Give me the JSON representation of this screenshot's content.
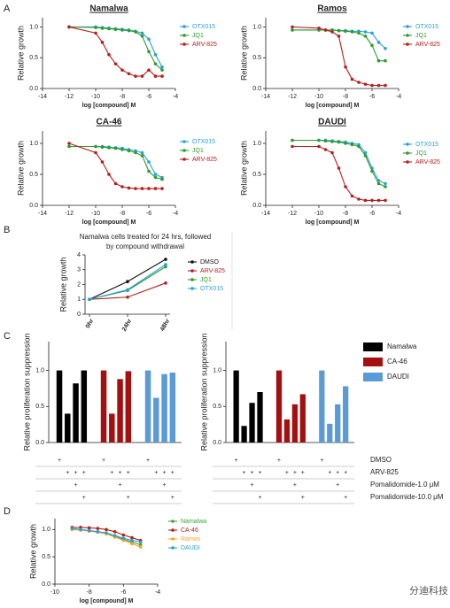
{
  "panel_labels": [
    "A",
    "B",
    "C",
    "D"
  ],
  "watermark": "分迪科技",
  "chart_data": [
    {
      "type": "line",
      "title": "Namalwa",
      "xlabel": "log [compound] M",
      "ylabel": "Relative growth",
      "x": [
        -12,
        -10,
        -9.5,
        -9,
        -8.5,
        -8,
        -7.5,
        -7,
        -6.5,
        -6,
        -5.5,
        -5
      ],
      "xlim": [
        -14,
        -4
      ],
      "xticks": [
        -14,
        -12,
        -10,
        -8,
        -6,
        -4
      ],
      "ylim": [
        0,
        1.15
      ],
      "yticks": [
        {
          "value": 0,
          "label": "0.0"
        },
        {
          "value": 0.5,
          "label": "0.5"
        },
        {
          "value": 1,
          "label": "1.0"
        }
      ],
      "series": [
        {
          "name": "OTX015",
          "color": "#2a9fd8",
          "values": [
            1.0,
            1.0,
            0.99,
            0.98,
            0.97,
            0.96,
            0.95,
            0.93,
            0.9,
            0.8,
            0.55,
            0.35
          ]
        },
        {
          "name": "JQ1",
          "color": "#2e9b2e",
          "values": [
            1.0,
            0.99,
            0.98,
            0.97,
            0.96,
            0.95,
            0.94,
            0.92,
            0.85,
            0.6,
            0.4,
            0.3
          ]
        },
        {
          "name": "ARV-825",
          "color": "#b3201e",
          "values": [
            1.0,
            0.9,
            0.75,
            0.55,
            0.4,
            0.3,
            0.24,
            0.2,
            0.2,
            0.3,
            0.2,
            0.2
          ]
        }
      ]
    },
    {
      "type": "line",
      "title": "Ramos",
      "xlabel": "log [compound] M",
      "ylabel": "Relative growth",
      "x": [
        -12,
        -10,
        -9.5,
        -9,
        -8.5,
        -8,
        -7.5,
        -7,
        -6.5,
        -6,
        -5.5,
        -5
      ],
      "xlim": [
        -14,
        -4
      ],
      "xticks": [
        -14,
        -12,
        -10,
        -8,
        -6,
        -4
      ],
      "ylim": [
        0,
        1.15
      ],
      "yticks": [
        {
          "value": 0,
          "label": "0.0"
        },
        {
          "value": 0.5,
          "label": "0.5"
        },
        {
          "value": 1,
          "label": "1.0"
        }
      ],
      "series": [
        {
          "name": "OTX015",
          "color": "#2a9fd8",
          "values": [
            0.95,
            0.95,
            0.95,
            0.95,
            0.94,
            0.94,
            0.93,
            0.93,
            0.92,
            0.9,
            0.75,
            0.65
          ]
        },
        {
          "name": "JQ1",
          "color": "#2e9b2e",
          "values": [
            0.95,
            0.95,
            0.95,
            0.95,
            0.94,
            0.93,
            0.92,
            0.9,
            0.85,
            0.7,
            0.45,
            0.45
          ]
        },
        {
          "name": "ARV-825",
          "color": "#b3201e",
          "values": [
            1.0,
            0.98,
            0.95,
            0.92,
            0.85,
            0.35,
            0.15,
            0.1,
            0.07,
            0.05,
            0.05,
            0.05
          ]
        }
      ]
    },
    {
      "type": "line",
      "title": "CA-46",
      "xlabel": "log [compound] M",
      "ylabel": "Relative growth",
      "x": [
        -12,
        -10,
        -9.5,
        -9,
        -8.5,
        -8,
        -7.5,
        -7,
        -6.5,
        -6,
        -5.5,
        -5
      ],
      "xlim": [
        -14,
        -4
      ],
      "xticks": [
        -14,
        -12,
        -10,
        -8,
        -6,
        -4
      ],
      "ylim": [
        0,
        1.2
      ],
      "yticks": [
        {
          "value": 0,
          "label": "0.0"
        },
        {
          "value": 0.5,
          "label": "0.5"
        },
        {
          "value": 1,
          "label": "1.0"
        }
      ],
      "series": [
        {
          "name": "OTX015",
          "color": "#2a9fd8",
          "values": [
            0.95,
            0.95,
            0.95,
            0.94,
            0.93,
            0.92,
            0.9,
            0.88,
            0.85,
            0.7,
            0.5,
            0.45
          ]
        },
        {
          "name": "JQ1",
          "color": "#2e9b2e",
          "values": [
            0.95,
            0.95,
            0.94,
            0.93,
            0.92,
            0.9,
            0.88,
            0.85,
            0.8,
            0.55,
            0.45,
            0.42
          ]
        },
        {
          "name": "ARV-825",
          "color": "#b3201e",
          "values": [
            1.0,
            0.85,
            0.7,
            0.5,
            0.35,
            0.3,
            0.28,
            0.27,
            0.27,
            0.27,
            0.27,
            0.27
          ]
        }
      ]
    },
    {
      "type": "line",
      "title": "DAUDI",
      "xlabel": "log [compound] M",
      "ylabel": "Relative growth",
      "x": [
        -12,
        -10,
        -9.5,
        -9,
        -8.5,
        -8,
        -7.5,
        -7,
        -6.5,
        -6,
        -5.5,
        -5
      ],
      "xlim": [
        -14,
        -4
      ],
      "xticks": [
        -14,
        -12,
        -10,
        -8,
        -6,
        -4
      ],
      "ylim": [
        0,
        1.2
      ],
      "yticks": [
        {
          "value": 0,
          "label": "0.0"
        },
        {
          "value": 0.5,
          "label": "0.5"
        },
        {
          "value": 1,
          "label": "1.0"
        }
      ],
      "series": [
        {
          "name": "OTX015",
          "color": "#2a9fd8",
          "values": [
            1.05,
            1.05,
            1.05,
            1.04,
            1.03,
            1.02,
            1.0,
            0.98,
            0.85,
            0.6,
            0.4,
            0.35
          ]
        },
        {
          "name": "JQ1",
          "color": "#2e9b2e",
          "values": [
            1.05,
            1.05,
            1.04,
            1.03,
            1.02,
            1.0,
            0.98,
            0.95,
            0.8,
            0.55,
            0.35,
            0.3
          ]
        },
        {
          "name": "ARV-825",
          "color": "#b3201e",
          "values": [
            0.95,
            0.95,
            0.9,
            0.85,
            0.6,
            0.3,
            0.15,
            0.1,
            0.08,
            0.08,
            0.08,
            0.08
          ]
        }
      ]
    },
    {
      "type": "line",
      "title": [
        "Namalwa cells treated for 24 hrs, followed",
        "by compound withdrawal"
      ],
      "ylabel": "Relative growth",
      "categories": [
        "0hr",
        "24hr",
        "48hr"
      ],
      "ylim": [
        0,
        4
      ],
      "yticks": [
        0,
        1,
        2,
        3,
        4
      ],
      "series": [
        {
          "name": "DMSO",
          "color": "#111111",
          "values": [
            1.0,
            2.2,
            3.7
          ]
        },
        {
          "name": "ARV-825",
          "color": "#b3201e",
          "values": [
            1.0,
            1.15,
            2.1
          ]
        },
        {
          "name": "JQ1",
          "color": "#2e9b2e",
          "values": [
            1.0,
            1.6,
            3.2
          ]
        },
        {
          "name": "OTX015",
          "color": "#2a9fd8",
          "values": [
            1.0,
            1.65,
            3.35
          ]
        }
      ]
    },
    {
      "type": "bar",
      "ylabel": "Relative proliferation suppression",
      "ylim": [
        0,
        1.4
      ],
      "yticks": [
        {
          "value": 0,
          "label": "0.0"
        },
        {
          "value": 0.5,
          "label": "0.5"
        },
        {
          "value": 1,
          "label": "1.0"
        }
      ],
      "condition_marks": [
        [
          "+",
          null,
          null,
          null
        ],
        [
          null,
          "+",
          "+",
          "+"
        ],
        [
          null,
          null,
          "+",
          null
        ],
        [
          null,
          null,
          null,
          "+"
        ]
      ],
      "series": [
        {
          "name": "Namalwa",
          "color": "#000000",
          "values": [
            1.0,
            0.4,
            0.82,
            1.0
          ]
        },
        {
          "name": "CA-46",
          "color": "#a50f0f",
          "values": [
            1.0,
            0.4,
            0.88,
            0.99
          ]
        },
        {
          "name": "DAUDI",
          "color": "#5b9bd5",
          "values": [
            1.0,
            0.62,
            0.95,
            0.97
          ]
        }
      ]
    },
    {
      "type": "bar",
      "ylabel": "Relative proliferation suppression",
      "legend": "right",
      "ylim": [
        0,
        1.4
      ],
      "yticks": [
        {
          "value": 0,
          "label": "0.0"
        },
        {
          "value": 0.5,
          "label": "0.5"
        },
        {
          "value": 1,
          "label": "1.0"
        }
      ],
      "condition_labels": [
        "DMSO",
        "ARV-825",
        "Pomalidomide-1.0 μM",
        "Pomalidomide-10.0 μM"
      ],
      "condition_marks": [
        [
          "+",
          null,
          null,
          null
        ],
        [
          null,
          "+",
          "+",
          "+"
        ],
        [
          null,
          null,
          "+",
          null
        ],
        [
          null,
          null,
          null,
          "+"
        ]
      ],
      "series": [
        {
          "name": "Namalwa",
          "color": "#000000",
          "values": [
            1.0,
            0.23,
            0.55,
            0.7
          ]
        },
        {
          "name": "CA-46",
          "color": "#a50f0f",
          "values": [
            1.0,
            0.32,
            0.53,
            0.67
          ]
        },
        {
          "name": "DAUDI",
          "color": "#5b9bd5",
          "values": [
            1.0,
            0.26,
            0.53,
            0.78
          ]
        }
      ]
    },
    {
      "type": "line",
      "xlabel": "log [compound] M",
      "ylabel": "Relative growth",
      "x": [
        -9,
        -8.5,
        -8,
        -7.5,
        -7,
        -6.5,
        -6,
        -5.5,
        -5
      ],
      "xlim": [
        -10,
        -4
      ],
      "xticks": [
        -10,
        -8,
        -6,
        -4
      ],
      "ylim": [
        0,
        1.2
      ],
      "yticks": [
        {
          "value": 0,
          "label": "0.0"
        },
        {
          "value": 0.5,
          "label": "0.5"
        },
        {
          "value": 1,
          "label": "1.0"
        }
      ],
      "series": [
        {
          "name": "Namalwa",
          "color": "#3aa83a",
          "values": [
            1.02,
            1.0,
            0.98,
            0.96,
            0.93,
            0.88,
            0.82,
            0.77,
            0.72
          ]
        },
        {
          "name": "CA-46",
          "color": "#b3201e",
          "values": [
            1.04,
            1.04,
            1.03,
            1.02,
            1.0,
            0.96,
            0.9,
            0.85,
            0.8
          ]
        },
        {
          "name": "Ramos",
          "color": "#f5a623",
          "values": [
            1.0,
            0.99,
            0.97,
            0.95,
            0.92,
            0.86,
            0.8,
            0.74,
            0.68
          ]
        },
        {
          "name": "DAUDI",
          "color": "#2a9fd8",
          "values": [
            1.02,
            1.0,
            0.98,
            0.96,
            0.94,
            0.89,
            0.84,
            0.8,
            0.77
          ]
        }
      ]
    }
  ]
}
